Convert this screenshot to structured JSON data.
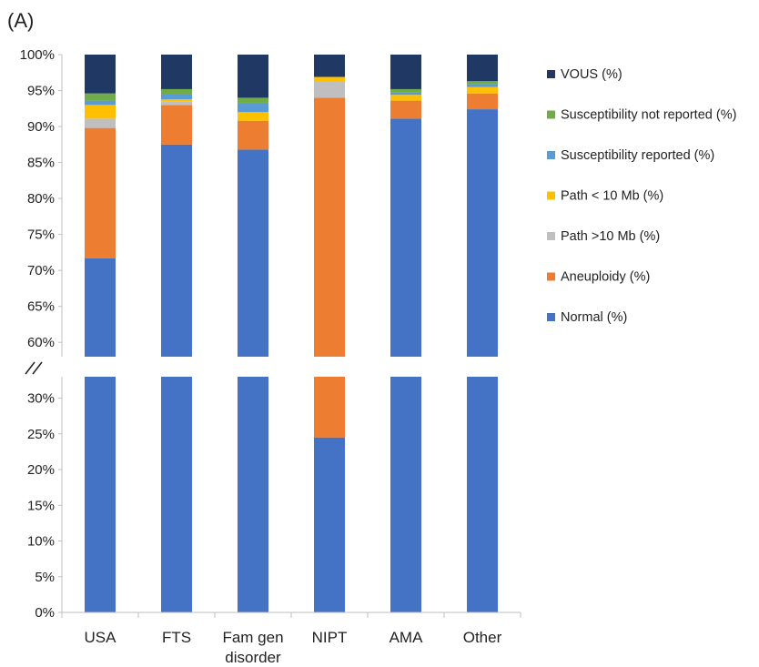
{
  "chart_data": {
    "type": "bar",
    "stacked": true,
    "panel_label": "(A)",
    "title": "",
    "xlabel": "",
    "ylabel": "",
    "categories": [
      "USA",
      "FTS",
      "Fam gen\ndisorder",
      "NIPT",
      "AMA",
      "Other"
    ],
    "axis_break": true,
    "lower_axis": {
      "ylim": [
        0,
        33
      ],
      "ticks": [
        "0%",
        "5%",
        "10%",
        "15%",
        "20%",
        "25%",
        "30%"
      ]
    },
    "upper_axis": {
      "ylim": [
        58,
        100
      ],
      "ticks": [
        "60%",
        "65%",
        "70%",
        "75%",
        "80%",
        "85%",
        "90%",
        "95%",
        "100%"
      ]
    },
    "series": [
      {
        "name": "Normal (%)",
        "color": "#4472C4",
        "values": [
          71.7,
          87.5,
          86.8,
          24.5,
          91.1,
          92.4
        ]
      },
      {
        "name": "Aneuploidy (%)",
        "color": "#ED7D31",
        "values": [
          18.1,
          5.5,
          4.0,
          69.5,
          2.5,
          2.2
        ]
      },
      {
        "name": "Path >10 Mb (%)",
        "color": "#BFBFBF",
        "values": [
          1.3,
          0.5,
          0.0,
          2.2,
          0.0,
          0.0
        ]
      },
      {
        "name": "Path < 10 Mb (%)",
        "color": "#FFC000",
        "values": [
          1.9,
          0.3,
          1.2,
          0.7,
          0.8,
          0.9
        ]
      },
      {
        "name": "Susceptibility reported (%)",
        "color": "#5B9BD5",
        "values": [
          0.6,
          0.7,
          1.3,
          0.0,
          0.3,
          0.4
        ]
      },
      {
        "name": "Susceptibility not reported (%)",
        "color": "#70AD47",
        "values": [
          1.0,
          0.7,
          0.7,
          0.0,
          0.5,
          0.4
        ]
      },
      {
        "name": "VOUS (%)",
        "color": "#203864",
        "values": [
          5.4,
          4.8,
          6.0,
          3.1,
          4.8,
          3.7
        ]
      }
    ],
    "legend": {
      "placement": "right",
      "order": [
        "VOUS (%)",
        "Susceptibility not reported (%)",
        "Susceptibility reported (%)",
        "Path < 10 Mb (%)",
        "Path >10 Mb (%)",
        "Aneuploidy (%)",
        "Normal (%)"
      ]
    },
    "grid": false
  }
}
